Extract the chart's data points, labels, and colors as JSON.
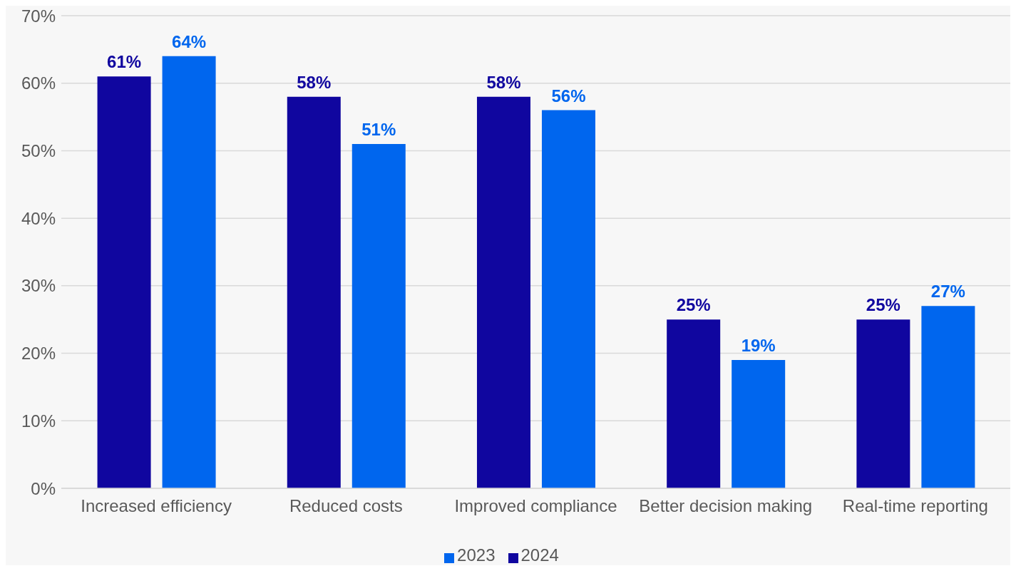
{
  "chart_data": {
    "type": "bar",
    "categories": [
      "Increased efficiency",
      "Reduced costs",
      "Improved compliance",
      "Better decision making",
      "Real-time reporting"
    ],
    "series": [
      {
        "name": "2024",
        "color": "#10069f",
        "values": [
          61,
          58,
          58,
          25,
          25
        ],
        "value_labels": [
          "61%",
          "58%",
          "58%",
          "25%",
          "25%"
        ]
      },
      {
        "name": "2023",
        "color": "#0066ee",
        "values": [
          64,
          51,
          56,
          19,
          27
        ],
        "value_labels": [
          "64%",
          "51%",
          "56%",
          "19%",
          "27%"
        ]
      }
    ],
    "ylim": [
      0,
      70
    ],
    "yticks": [
      {
        "value": 0,
        "label": "0%"
      },
      {
        "value": 10,
        "label": "10%"
      },
      {
        "value": 20,
        "label": "20%"
      },
      {
        "value": 30,
        "label": "30%"
      },
      {
        "value": 40,
        "label": "40%"
      },
      {
        "value": 50,
        "label": "50%"
      },
      {
        "value": 60,
        "label": "60%"
      },
      {
        "value": 70,
        "label": "70%"
      }
    ],
    "grid": "y",
    "legend": "bottom"
  }
}
